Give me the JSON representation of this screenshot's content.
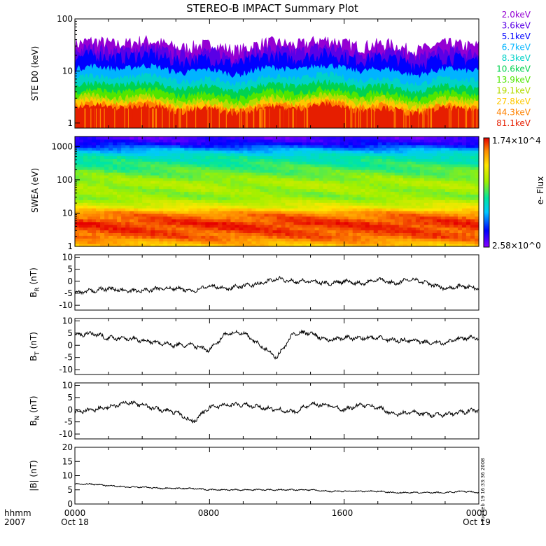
{
  "title": "STEREO-B IMPACT Summary Plot",
  "timestamp": "Tue Feb 19 16:33:36 2008",
  "x_axis": {
    "row_labels": [
      "hhmm",
      "2007"
    ],
    "ticks": [
      "0000",
      "0800",
      "1600",
      "0000"
    ],
    "dates": [
      "Oct 18",
      "Oct 19"
    ]
  },
  "colorbar": {
    "label": "e- Flux",
    "max_label": "1.74×10^4",
    "min_label": "2.58×10^0"
  },
  "colors": {
    "energy_channels": [
      "#9400d3",
      "#5a00e6",
      "#0000ff",
      "#00b4ff",
      "#00d2c8",
      "#00d250",
      "#50e600",
      "#b4dc00",
      "#ffc800",
      "#ff8200",
      "#e61e00"
    ]
  },
  "chart_data": [
    {
      "type": "line",
      "name": "ste",
      "ylabel": "STE D0 (keV)",
      "yscale": "log",
      "ylim": [
        0.8,
        100
      ],
      "yticks": [
        "1",
        "10",
        "100"
      ],
      "legend_placement": "right",
      "series": [
        {
          "name": "2.0keV",
          "level": 22
        },
        {
          "name": "3.6keV",
          "level": 16
        },
        {
          "name": "5.1keV",
          "level": 12
        },
        {
          "name": "6.7keV",
          "level": 9
        },
        {
          "name": "8.3keV",
          "level": 6
        },
        {
          "name": "10.6keV",
          "level": 4.3
        },
        {
          "name": "13.9keV",
          "level": 3.2
        },
        {
          "name": "19.1keV",
          "level": 2.5
        },
        {
          "name": "27.8keV",
          "level": 2.1
        },
        {
          "name": "44.3keV",
          "level": 1.8
        },
        {
          "name": "81.1keV",
          "level": 1.6
        }
      ]
    },
    {
      "type": "heatmap",
      "name": "swea",
      "ylabel": "SWEA (eV)",
      "yscale": "log",
      "ylim": [
        1,
        2000
      ],
      "yticks": [
        "1",
        "10",
        "100",
        "1000"
      ],
      "energy_profile": [
        {
          "energy": 1,
          "level": 0.78
        },
        {
          "energy": 2,
          "level": 0.92
        },
        {
          "energy": 5,
          "level": 0.96
        },
        {
          "energy": 10,
          "level": 0.88
        },
        {
          "energy": 15,
          "level": 0.72
        },
        {
          "energy": 30,
          "level": 0.58
        },
        {
          "energy": 80,
          "level": 0.62
        },
        {
          "energy": 200,
          "level": 0.52
        },
        {
          "energy": 500,
          "level": 0.42
        },
        {
          "energy": 800,
          "level": 0.3
        },
        {
          "energy": 1200,
          "level": 0.15
        },
        {
          "energy": 2000,
          "level": 0.05
        }
      ]
    },
    {
      "type": "line",
      "name": "br",
      "ylabel": "B_R (nT)",
      "label_main": "B",
      "label_sub": "R",
      "label_unit": "(nT)",
      "ylim": [
        -12,
        11
      ],
      "yticks": [
        10,
        5,
        0,
        -5,
        -10
      ],
      "x": [
        0,
        1,
        2,
        3,
        4,
        5,
        6,
        7,
        8,
        9,
        10,
        11,
        12,
        13,
        14,
        15,
        16,
        17,
        18,
        19,
        20,
        21,
        22,
        23,
        24
      ],
      "values": [
        -5,
        -4,
        -3,
        -4,
        -4,
        -3,
        -3,
        -4,
        -2,
        -3,
        -2,
        -1,
        1,
        0,
        0,
        -1,
        0,
        -1,
        1,
        -1,
        1,
        -1,
        -3,
        -2,
        -3
      ]
    },
    {
      "type": "line",
      "name": "bt",
      "ylabel": "B_T (nT)",
      "label_main": "B",
      "label_sub": "T",
      "label_unit": "(nT)",
      "ylim": [
        -12,
        11
      ],
      "yticks": [
        10,
        5,
        0,
        -5,
        -10
      ],
      "x": [
        0,
        1,
        2,
        3,
        4,
        5,
        6,
        7,
        8,
        9,
        10,
        11,
        12,
        13,
        14,
        15,
        16,
        17,
        18,
        19,
        20,
        21,
        22,
        23,
        24
      ],
      "values": [
        4,
        5,
        3,
        3,
        2,
        1,
        0,
        0,
        -2,
        5,
        5,
        0,
        -5,
        5,
        5,
        2,
        3,
        3,
        3,
        2,
        2,
        1,
        1,
        3,
        3
      ]
    },
    {
      "type": "line",
      "name": "bn",
      "ylabel": "B_N (nT)",
      "label_main": "B",
      "label_sub": "N",
      "label_unit": "(nT)",
      "ylim": [
        -12,
        11
      ],
      "yticks": [
        10,
        5,
        0,
        -5,
        -10
      ],
      "x": [
        0,
        1,
        2,
        3,
        4,
        5,
        6,
        7,
        8,
        9,
        10,
        11,
        12,
        13,
        14,
        15,
        16,
        17,
        18,
        19,
        20,
        21,
        22,
        23,
        24
      ],
      "values": [
        -1,
        0,
        1,
        3,
        2,
        0,
        -1,
        -5,
        1,
        2,
        2,
        1,
        0,
        -1,
        2,
        2,
        0,
        2,
        1,
        -2,
        -1,
        -2,
        -2,
        -1,
        0
      ]
    },
    {
      "type": "line",
      "name": "bmag",
      "ylabel": "|B| (nT)",
      "label_main": "|B|",
      "label_sub": "",
      "label_unit": "(nT)",
      "ylim": [
        0,
        20
      ],
      "yticks": [
        20,
        15,
        10,
        5,
        0
      ],
      "x": [
        0,
        1,
        2,
        3,
        4,
        5,
        6,
        7,
        8,
        9,
        10,
        11,
        12,
        13,
        14,
        15,
        16,
        17,
        18,
        19,
        20,
        21,
        22,
        23,
        24
      ],
      "values": [
        7,
        7,
        6.5,
        6,
        6,
        5.5,
        5.5,
        5.5,
        5,
        5,
        5,
        5,
        5,
        5,
        5,
        4.5,
        4.5,
        4.5,
        4.5,
        4,
        4,
        4,
        4,
        4.5,
        4
      ]
    }
  ]
}
